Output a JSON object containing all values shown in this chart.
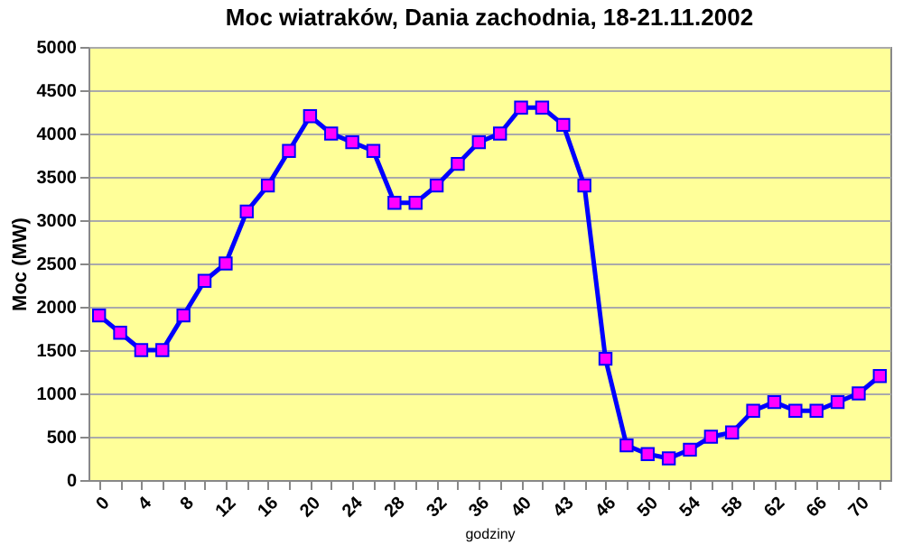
{
  "chart_data": {
    "type": "line",
    "title": "Moc wiatraków, Dania zachodnia, 18-21.11.2002",
    "xlabel": "godziny",
    "ylabel": "Moc (MW)",
    "categories": [
      "0",
      null,
      "4",
      null,
      "8",
      null,
      "12",
      null,
      "16",
      null,
      "20",
      null,
      "24",
      null,
      "28",
      null,
      "32",
      null,
      "36",
      null,
      "40",
      null,
      "43",
      null,
      "46",
      null,
      "50",
      null,
      "54",
      null,
      "58",
      null,
      "62",
      null,
      "66",
      null,
      "70",
      null
    ],
    "series": [
      {
        "color": "#0000ff",
        "values": [
          1900,
          1700,
          1500,
          1500,
          1900,
          2300,
          2500,
          3100,
          3400,
          3800,
          4200,
          4000,
          3900,
          3800,
          3200,
          3200,
          3400,
          3650,
          3900,
          4000,
          4300,
          4300,
          4100,
          3400,
          1400,
          400,
          300,
          250,
          350,
          500,
          550,
          800,
          900,
          800,
          800,
          900,
          1000,
          1200
        ]
      }
    ],
    "ylim": [
      0,
      5000
    ],
    "yticks": [
      0,
      500,
      1000,
      1500,
      2000,
      2500,
      3000,
      3500,
      4000,
      4500,
      5000
    ],
    "grid": "y",
    "marker": "square",
    "line_style": "solid",
    "legend": false
  }
}
